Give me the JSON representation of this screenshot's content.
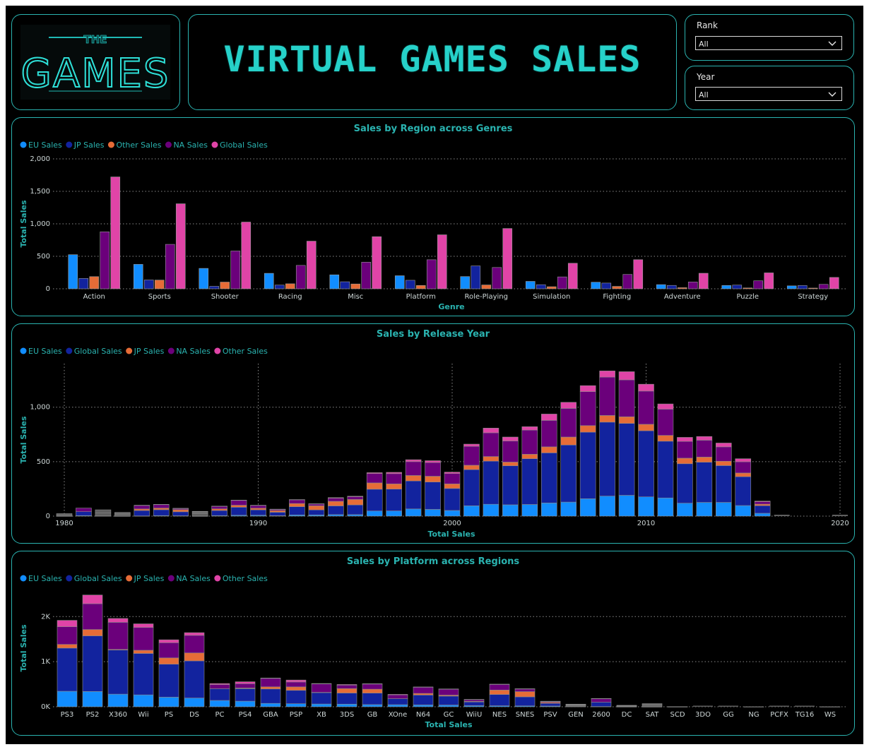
{
  "header": {
    "title": "VIRTUAL GAMES SALES",
    "logo_small": "THE",
    "logo_big": "GAMES"
  },
  "filters": {
    "rank": {
      "label": "Rank",
      "value": "All"
    },
    "year": {
      "label": "Year",
      "value": "All"
    }
  },
  "colors": {
    "eu": "#118dff",
    "jp_navy": "#12239e",
    "orange": "#e66c37",
    "purple": "#6b007b",
    "pink": "#e044a7",
    "teal": "#2ab3b0",
    "gray": "#5f5f5f"
  },
  "chart_data": [
    {
      "type": "bar",
      "title": "Sales by Region across Genres",
      "xlabel": "Genre",
      "ylabel": "Total Sales",
      "ylim": [
        0,
        2000
      ],
      "yticks": [
        "0",
        "500",
        "1,000",
        "1,500",
        "2,000"
      ],
      "categories": [
        "Action",
        "Sports",
        "Shooter",
        "Racing",
        "Misc",
        "Platform",
        "Role-Playing",
        "Simulation",
        "Fighting",
        "Adventure",
        "Puzzle",
        "Strategy"
      ],
      "legend": "top-left",
      "series": [
        {
          "name": "EU Sales",
          "color": "#118dff",
          "values": [
            525,
            376,
            314,
            238,
            215,
            201,
            188,
            114,
            101,
            64,
            51,
            45
          ]
        },
        {
          "name": "JP Sales",
          "color": "#12239e",
          "values": [
            159,
            136,
            38,
            57,
            108,
            131,
            352,
            63,
            88,
            52,
            57,
            50
          ]
        },
        {
          "name": "Other Sales",
          "color": "#e66c37",
          "values": [
            187,
            134,
            103,
            77,
            74,
            51,
            59,
            32,
            37,
            17,
            13,
            11
          ]
        },
        {
          "name": "NA Sales",
          "color": "#6b007b",
          "values": [
            877,
            684,
            582,
            360,
            410,
            447,
            328,
            183,
            221,
            105,
            123,
            68
          ]
        },
        {
          "name": "Global Sales",
          "color": "#e044a7",
          "values": [
            1722,
            1309,
            1027,
            733,
            802,
            831,
            928,
            393,
            448,
            239,
            245,
            175
          ]
        }
      ]
    },
    {
      "type": "bar",
      "stacked": true,
      "title": "Sales by Release Year",
      "xlabel": "Total Sales",
      "ylabel": "Total Sales",
      "ylim": [
        0,
        1400
      ],
      "yticks": [
        "0",
        "500",
        "1,000"
      ],
      "xticks": [
        "1980",
        "1990",
        "2000",
        "2010",
        "2020"
      ],
      "legend": "top-left",
      "x": [
        1980,
        1981,
        1982,
        1983,
        1984,
        1985,
        1986,
        1987,
        1988,
        1989,
        1990,
        1991,
        1992,
        1993,
        1994,
        1995,
        1996,
        1997,
        1998,
        1999,
        2000,
        2001,
        2002,
        2003,
        2004,
        2005,
        2006,
        2007,
        2008,
        2009,
        2010,
        2011,
        2012,
        2013,
        2014,
        2015,
        2016,
        2017,
        2020
      ],
      "series": [
        {
          "name": "EU Sales",
          "color": "#118dff",
          "values": [
            1,
            5,
            2,
            1,
            2,
            5,
            3,
            1,
            5,
            8,
            8,
            4,
            11,
            11,
            14,
            14,
            47,
            48,
            66,
            62,
            52,
            95,
            109,
            104,
            107,
            121,
            129,
            160,
            184,
            191,
            177,
            167,
            119,
            126,
            126,
            97,
            26,
            0,
            0
          ]
        },
        {
          "name": "Global Sales",
          "color": "#12239e",
          "values": [
            11,
            36,
            29,
            17,
            50,
            54,
            37,
            22,
            47,
            74,
            50,
            32,
            76,
            46,
            80,
            89,
            200,
            200,
            257,
            251,
            202,
            332,
            396,
            358,
            420,
            460,
            524,
            611,
            679,
            660,
            607,
            521,
            362,
            369,
            338,
            265,
            70,
            0,
            0
          ]
        },
        {
          "name": "JP Sales",
          "color": "#e66c37",
          "values": [
            0,
            0,
            0,
            8,
            14,
            15,
            19,
            11,
            15,
            18,
            15,
            15,
            29,
            38,
            42,
            50,
            58,
            48,
            50,
            53,
            42,
            40,
            42,
            34,
            41,
            55,
            73,
            60,
            61,
            61,
            59,
            53,
            51,
            47,
            40,
            34,
            14,
            0,
            0
          ]
        },
        {
          "name": "NA Sales",
          "color": "#6b007b",
          "values": [
            11,
            33,
            27,
            8,
            33,
            33,
            12,
            9,
            24,
            45,
            25,
            12,
            34,
            16,
            29,
            25,
            86,
            94,
            127,
            126,
            95,
            174,
            218,
            194,
            222,
            243,
            263,
            312,
            352,
            339,
            305,
            241,
            154,
            155,
            132,
            103,
            22,
            0,
            0
          ]
        },
        {
          "name": "Other Sales",
          "color": "#e044a7",
          "values": [
            0,
            0,
            0,
            0,
            1,
            1,
            1,
            1,
            1,
            2,
            2,
            1,
            2,
            3,
            5,
            5,
            8,
            12,
            18,
            17,
            13,
            20,
            43,
            36,
            31,
            58,
            56,
            55,
            57,
            75,
            63,
            48,
            37,
            34,
            35,
            28,
            6,
            0,
            0
          ]
        }
      ]
    },
    {
      "type": "bar",
      "stacked": true,
      "title": "Sales by Platform across Regions",
      "xlabel": "Total Sales",
      "ylabel": "Total Sales",
      "ylim": [
        0,
        2600
      ],
      "yticks": [
        "0K",
        "1K",
        "2K"
      ],
      "legend": "top-left",
      "categories": [
        "PS3",
        "PS2",
        "X360",
        "Wii",
        "PS",
        "DS",
        "PC",
        "PS4",
        "GBA",
        "PSP",
        "XB",
        "3DS",
        "GB",
        "XOne",
        "N64",
        "GC",
        "WiiU",
        "NES",
        "SNES",
        "PSV",
        "GEN",
        "2600",
        "DC",
        "SAT",
        "SCD",
        "3DO",
        "GG",
        "NG",
        "PCFX",
        "TG16",
        "WS"
      ],
      "series": [
        {
          "name": "EU Sales",
          "color": "#118dff",
          "values": [
            344,
            339,
            280,
            264,
            213,
            194,
            140,
            124,
            75,
            68,
            61,
            58,
            48,
            46,
            41,
            38,
            25,
            22,
            19,
            16,
            6,
            5,
            2,
            1,
            0,
            0,
            0,
            0,
            0,
            0,
            0
          ]
        },
        {
          "name": "Global Sales",
          "color": "#12239e",
          "values": [
            958,
            1234,
            980,
            919,
            731,
            824,
            260,
            278,
            320,
            296,
            258,
            247,
            256,
            134,
            220,
            199,
            82,
            251,
            201,
            62,
            28,
            97,
            15,
            34,
            2,
            0,
            0,
            1,
            0,
            0,
            1
          ]
        },
        {
          "name": "JP Sales",
          "color": "#e66c37",
          "values": [
            81,
            140,
            12,
            70,
            140,
            176,
            0,
            14,
            47,
            77,
            1,
            98,
            86,
            0,
            35,
            21,
            13,
            98,
            116,
            21,
            2,
            0,
            8,
            32,
            0,
            0,
            0,
            0,
            0,
            0,
            0
          ]
        },
        {
          "name": "NA Sales",
          "color": "#6b007b",
          "values": [
            393,
            573,
            602,
            507,
            337,
            390,
            93,
            96,
            188,
            109,
            187,
            78,
            114,
            83,
            139,
            133,
            38,
            126,
            61,
            16,
            19,
            81,
            5,
            1,
            1,
            0,
            0,
            0,
            0,
            0,
            0
          ]
        },
        {
          "name": "Other Sales",
          "color": "#e044a7",
          "values": [
            141,
            193,
            85,
            80,
            65,
            60,
            22,
            43,
            8,
            43,
            9,
            13,
            8,
            12,
            5,
            5,
            6,
            5,
            3,
            8,
            3,
            1,
            1,
            0,
            0,
            0,
            0,
            0,
            0,
            0,
            0
          ]
        }
      ]
    }
  ]
}
